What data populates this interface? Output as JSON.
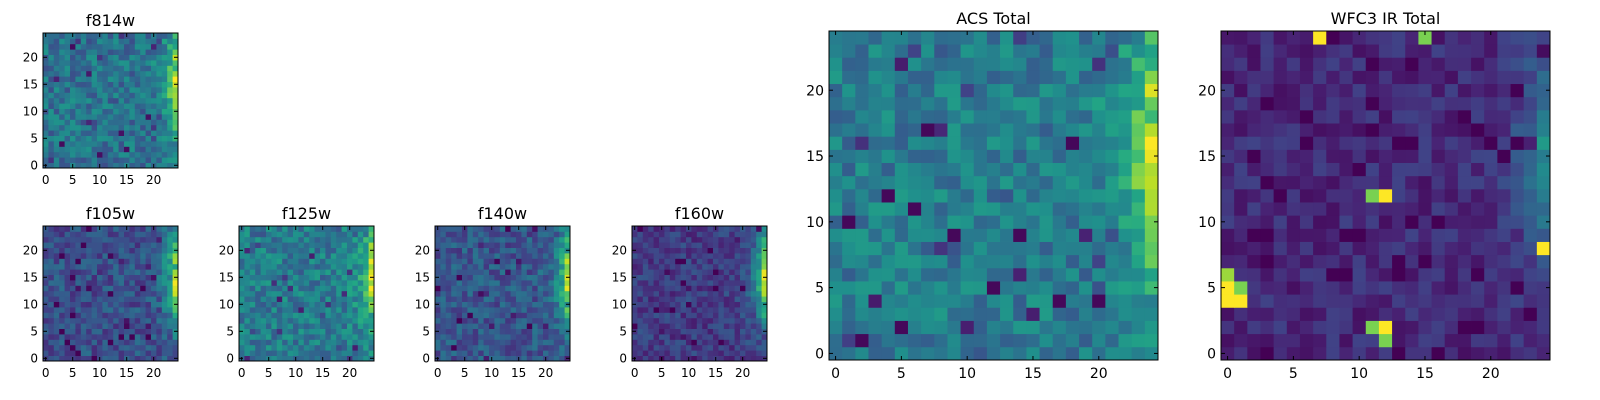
{
  "chart_data": [
    {
      "type": "heatmap",
      "title": "f814w",
      "grid_size": 25,
      "x_ticks": [
        "0",
        "5",
        "10",
        "15",
        "20"
      ],
      "y_ticks": [
        "0",
        "5",
        "10",
        "15",
        "20"
      ],
      "xlim": [
        -0.5,
        24.5
      ],
      "ylim": [
        -0.5,
        24.5
      ],
      "colormap": "viridis",
      "value_range": [
        0,
        1
      ],
      "values_description": "noisy blue-green field with bright yellow band along right edge",
      "base_level": 0.38,
      "noise": 0.14,
      "edge_brightness": 0.55,
      "seed": 11
    },
    {
      "type": "heatmap",
      "title": "f105w",
      "grid_size": 25,
      "x_ticks": [
        "0",
        "5",
        "10",
        "15",
        "20"
      ],
      "y_ticks": [
        "0",
        "5",
        "10",
        "15",
        "20"
      ],
      "xlim": [
        -0.5,
        24.5
      ],
      "ylim": [
        -0.5,
        24.5
      ],
      "colormap": "viridis",
      "value_range": [
        0,
        1
      ],
      "base_level": 0.25,
      "noise": 0.12,
      "edge_brightness": 0.65,
      "seed": 23
    },
    {
      "type": "heatmap",
      "title": "f125w",
      "grid_size": 25,
      "x_ticks": [
        "0",
        "5",
        "10",
        "15",
        "20"
      ],
      "y_ticks": [
        "0",
        "5",
        "10",
        "15",
        "20"
      ],
      "xlim": [
        -0.5,
        24.5
      ],
      "ylim": [
        -0.5,
        24.5
      ],
      "colormap": "viridis",
      "value_range": [
        0,
        1
      ],
      "base_level": 0.42,
      "noise": 0.14,
      "edge_brightness": 0.5,
      "seed": 37
    },
    {
      "type": "heatmap",
      "title": "f140w",
      "grid_size": 25,
      "x_ticks": [
        "0",
        "5",
        "10",
        "15",
        "20"
      ],
      "y_ticks": [
        "0",
        "5",
        "10",
        "15",
        "20"
      ],
      "xlim": [
        -0.5,
        24.5
      ],
      "ylim": [
        -0.5,
        24.5
      ],
      "colormap": "viridis",
      "value_range": [
        0,
        1
      ],
      "base_level": 0.27,
      "noise": 0.12,
      "edge_brightness": 0.6,
      "seed": 41
    },
    {
      "type": "heatmap",
      "title": "f160w",
      "grid_size": 25,
      "x_ticks": [
        "0",
        "5",
        "10",
        "15",
        "20"
      ],
      "y_ticks": [
        "0",
        "5",
        "10",
        "15",
        "20"
      ],
      "xlim": [
        -0.5,
        24.5
      ],
      "ylim": [
        -0.5,
        24.5
      ],
      "colormap": "viridis",
      "value_range": [
        0,
        1
      ],
      "base_level": 0.18,
      "noise": 0.1,
      "edge_brightness": 0.75,
      "seed": 53
    },
    {
      "type": "heatmap",
      "title": "ACS Total",
      "grid_size": 25,
      "x_ticks": [
        "0",
        "5",
        "10",
        "15",
        "20"
      ],
      "y_ticks": [
        "0",
        "5",
        "10",
        "15",
        "20"
      ],
      "xlim": [
        -0.5,
        24.5
      ],
      "ylim": [
        -0.5,
        24.5
      ],
      "colormap": "viridis",
      "value_range": [
        0,
        1
      ],
      "base_level": 0.42,
      "noise": 0.13,
      "edge_brightness": 0.55,
      "seed": 11,
      "dark_cells": [
        [
          1,
          10
        ],
        [
          4,
          12
        ],
        [
          5,
          2
        ],
        [
          6,
          11
        ],
        [
          9,
          9
        ],
        [
          14,
          9
        ],
        [
          17,
          4
        ],
        [
          18,
          16
        ],
        [
          20,
          4
        ],
        [
          12,
          5
        ],
        [
          2,
          1
        ],
        [
          7,
          17
        ]
      ]
    },
    {
      "type": "heatmap",
      "title": "WFC3 IR Total",
      "grid_size": 25,
      "x_ticks": [
        "0",
        "5",
        "10",
        "15",
        "20"
      ],
      "y_ticks": [
        "0",
        "5",
        "10",
        "15",
        "20"
      ],
      "xlim": [
        -0.5,
        24.5
      ],
      "ylim": [
        -0.5,
        24.5
      ],
      "colormap": "viridis",
      "value_range": [
        0,
        1
      ],
      "base_level": 0.12,
      "noise": 0.08,
      "edge_brightness": 0.35,
      "seed": 67,
      "hot_cells": [
        {
          "x": 7,
          "y": 24,
          "v": 1.0
        },
        {
          "x": 15,
          "y": 24,
          "v": 0.8
        },
        {
          "x": 12,
          "y": 12,
          "v": 1.0
        },
        {
          "x": 11,
          "y": 12,
          "v": 0.8
        },
        {
          "x": 24,
          "y": 8,
          "v": 1.0
        },
        {
          "x": 0,
          "y": 6,
          "v": 0.85
        },
        {
          "x": 0,
          "y": 5,
          "v": 1.0
        },
        {
          "x": 0,
          "y": 4,
          "v": 1.0
        },
        {
          "x": 1,
          "y": 4,
          "v": 1.0
        },
        {
          "x": 1,
          "y": 5,
          "v": 0.8
        },
        {
          "x": 11,
          "y": 2,
          "v": 0.8
        },
        {
          "x": 12,
          "y": 2,
          "v": 1.0
        },
        {
          "x": 12,
          "y": 1,
          "v": 0.8
        }
      ]
    }
  ]
}
